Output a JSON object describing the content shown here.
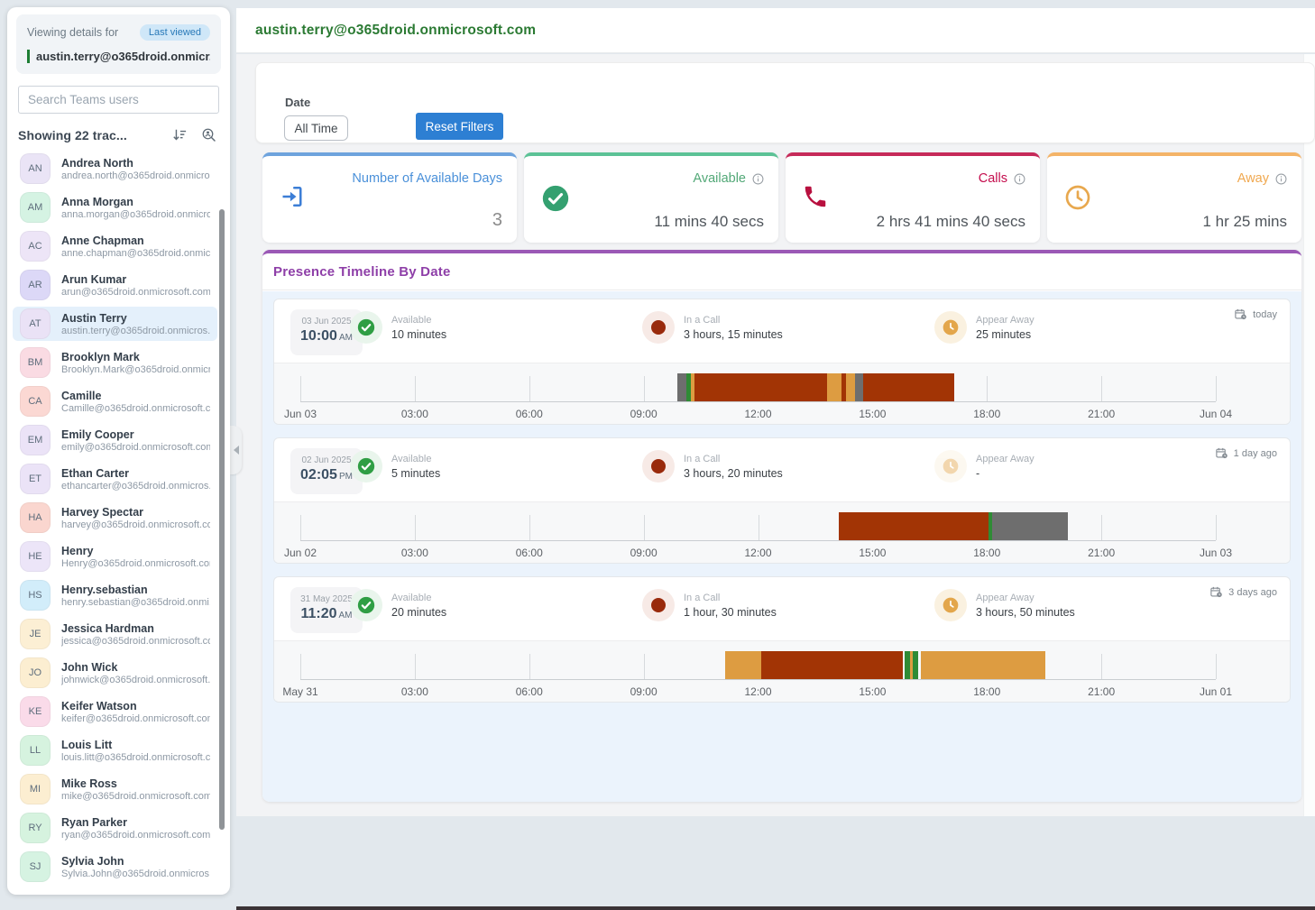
{
  "sidebar": {
    "viewing_label": "Viewing details for",
    "last_viewed_badge": "Last viewed",
    "selected_email": "austin.terry@o365droid.onmicr...",
    "search_placeholder": "Search Teams users",
    "showing_text": "Showing 22 trac...",
    "icons": [
      "sort-descending-icon",
      "person-search-icon",
      "collapse-left-icon"
    ],
    "users": [
      {
        "initials": "AN",
        "name": "Andrea North",
        "email": "andrea.north@o365droid.onmicro...",
        "color": "#eae4f6",
        "selected": false
      },
      {
        "initials": "AM",
        "name": "Anna Morgan",
        "email": "anna.morgan@o365droid.onmicro...",
        "color": "#d5f3e3",
        "selected": false
      },
      {
        "initials": "AC",
        "name": "Anne Chapman",
        "email": "anne.chapman@o365droid.onmicr...",
        "color": "#ede5f7",
        "selected": false
      },
      {
        "initials": "AR",
        "name": "Arun Kumar",
        "email": "arun@o365droid.onmicrosoft.com",
        "color": "#dcd8f7",
        "selected": false
      },
      {
        "initials": "AT",
        "name": "Austin Terry",
        "email": "austin.terry@o365droid.onmicros...",
        "color": "#eae2f6",
        "selected": true
      },
      {
        "initials": "BM",
        "name": "Brooklyn Mark",
        "email": "Brooklyn.Mark@o365droid.onmicr...",
        "color": "#fadbe3",
        "selected": false
      },
      {
        "initials": "CA",
        "name": "Camille",
        "email": "Camille@o365droid.onmicrosoft.c...",
        "color": "#fbd8d3",
        "selected": false
      },
      {
        "initials": "EM",
        "name": "Emily Cooper",
        "email": "emily@o365droid.onmicrosoft.com",
        "color": "#ebe3f7",
        "selected": false
      },
      {
        "initials": "ET",
        "name": "Ethan Carter",
        "email": "ethancarter@o365droid.onmicros...",
        "color": "#ebe3f7",
        "selected": false
      },
      {
        "initials": "HA",
        "name": "Harvey Spectar",
        "email": "harvey@o365droid.onmicrosoft.com",
        "color": "#fad6cf",
        "selected": false
      },
      {
        "initials": "HE",
        "name": "Henry",
        "email": "Henry@o365droid.onmicrosoft.com",
        "color": "#ece5f8",
        "selected": false
      },
      {
        "initials": "HS",
        "name": "Henry.sebastian",
        "email": "henry.sebastian@o365droid.onmi...",
        "color": "#d2edfa",
        "selected": false
      },
      {
        "initials": "JE",
        "name": "Jessica Hardman",
        "email": "jessica@o365droid.onmicrosoft.com",
        "color": "#fcefd4",
        "selected": false
      },
      {
        "initials": "JO",
        "name": "John Wick",
        "email": "johnwick@o365droid.onmicrosoft...",
        "color": "#fceed1",
        "selected": false
      },
      {
        "initials": "KE",
        "name": "Keifer Watson",
        "email": "keifer@o365droid.onmicrosoft.com",
        "color": "#fadbe9",
        "selected": false
      },
      {
        "initials": "LL",
        "name": "Louis Litt",
        "email": "louis.litt@o365droid.onmicrosoft.c...",
        "color": "#d6f3df",
        "selected": false
      },
      {
        "initials": "MI",
        "name": "Mike Ross",
        "email": "mike@o365droid.onmicrosoft.com",
        "color": "#fceed1",
        "selected": false
      },
      {
        "initials": "RY",
        "name": "Ryan Parker",
        "email": "ryan@o365droid.onmicrosoft.com",
        "color": "#d6f3df",
        "selected": false
      },
      {
        "initials": "SJ",
        "name": "Sylvia John",
        "email": "Sylvia.John@o365droid.onmicros...",
        "color": "#d6f3e2",
        "selected": false
      }
    ]
  },
  "header": {
    "email": "austin.terry@o365droid.onmicrosoft.com"
  },
  "filters": {
    "date_label": "Date",
    "date_value": "All Time",
    "reset_label": "Reset Filters"
  },
  "stat_cards": [
    {
      "title": "Number of Available Days",
      "value": "3",
      "accent": "#6ea3dd",
      "title_color": "#4a90d9",
      "icon": "login-icon",
      "info": false
    },
    {
      "title": "Available",
      "value": "11 mins 40 secs",
      "accent": "#5cc296",
      "title_color": "#52a877",
      "icon": "check-circle-icon",
      "info": true
    },
    {
      "title": "Calls",
      "value": "2 hrs 41 mins 40 secs",
      "accent": "#c62a59",
      "title_color": "#c40d4d",
      "icon": "phone-icon",
      "info": true
    },
    {
      "title": "Away",
      "value": "1 hr 25 mins",
      "accent": "#f4b468",
      "title_color": "#f0a84f",
      "icon": "clock-icon",
      "info": true
    }
  ],
  "timeline_section": {
    "title": "Presence Timeline By Date",
    "palette": {
      "gray": "#6e6e6e",
      "green": "#2f8b35",
      "brick": "#a23405",
      "tan": "#dd9c41"
    },
    "rows": [
      {
        "date": "03 Jun 2025",
        "time": "10:00",
        "meridiem": "AM",
        "relative": "today",
        "stats": [
          {
            "type": "available",
            "label": "Available",
            "value": "10 minutes",
            "faded": false
          },
          {
            "type": "call",
            "label": "In a Call",
            "value": "3 hours, 15 minutes",
            "faded": false
          },
          {
            "type": "away",
            "label": "Appear Away",
            "value": "25 minutes",
            "faded": false
          }
        ],
        "axis": [
          "Jun 03",
          "03:00",
          "06:00",
          "09:00",
          "12:00",
          "15:00",
          "18:00",
          "21:00",
          "Jun 04"
        ],
        "segments": [
          {
            "start": 41.2,
            "width": 1.0,
            "color": "gray"
          },
          {
            "start": 42.2,
            "width": 0.5,
            "color": "green"
          },
          {
            "start": 42.7,
            "width": 0.35,
            "color": "tan"
          },
          {
            "start": 43.05,
            "width": 14.45,
            "color": "brick"
          },
          {
            "start": 57.5,
            "width": 1.6,
            "color": "tan"
          },
          {
            "start": 59.1,
            "width": 0.5,
            "color": "brick"
          },
          {
            "start": 59.6,
            "width": 1.0,
            "color": "tan"
          },
          {
            "start": 60.6,
            "width": 0.85,
            "color": "gray"
          },
          {
            "start": 61.45,
            "width": 10.0,
            "color": "brick"
          }
        ]
      },
      {
        "date": "02 Jun 2025",
        "time": "02:05",
        "meridiem": "PM",
        "relative": "1 day ago",
        "stats": [
          {
            "type": "available",
            "label": "Available",
            "value": "5 minutes",
            "faded": false
          },
          {
            "type": "call",
            "label": "In a Call",
            "value": "3 hours, 20 minutes",
            "faded": false
          },
          {
            "type": "away",
            "label": "Appear Away",
            "value": "-",
            "faded": true
          }
        ],
        "axis": [
          "Jun 02",
          "03:00",
          "06:00",
          "09:00",
          "12:00",
          "15:00",
          "18:00",
          "21:00",
          "Jun 03"
        ],
        "segments": [
          {
            "start": 58.8,
            "width": 16.4,
            "color": "brick"
          },
          {
            "start": 75.2,
            "width": 0.4,
            "color": "green"
          },
          {
            "start": 75.6,
            "width": 8.2,
            "color": "gray"
          }
        ]
      },
      {
        "date": "31 May 2025",
        "time": "11:20",
        "meridiem": "AM",
        "relative": "3 days ago",
        "stats": [
          {
            "type": "available",
            "label": "Available",
            "value": "20 minutes",
            "faded": false
          },
          {
            "type": "call",
            "label": "In a Call",
            "value": "1 hour, 30 minutes",
            "faded": false
          },
          {
            "type": "away",
            "label": "Appear Away",
            "value": "3 hours, 50 minutes",
            "faded": false
          }
        ],
        "axis": [
          "May 31",
          "03:00",
          "06:00",
          "09:00",
          "12:00",
          "15:00",
          "18:00",
          "21:00",
          "Jun 01"
        ],
        "segments": [
          {
            "start": 46.4,
            "width": 3.9,
            "color": "tan"
          },
          {
            "start": 50.3,
            "width": 15.5,
            "color": "brick"
          },
          {
            "start": 66.0,
            "width": 0.6,
            "color": "green"
          },
          {
            "start": 66.6,
            "width": 0.3,
            "color": "tan"
          },
          {
            "start": 66.9,
            "width": 0.6,
            "color": "green"
          },
          {
            "start": 67.8,
            "width": 13.6,
            "color": "tan"
          }
        ]
      }
    ]
  }
}
